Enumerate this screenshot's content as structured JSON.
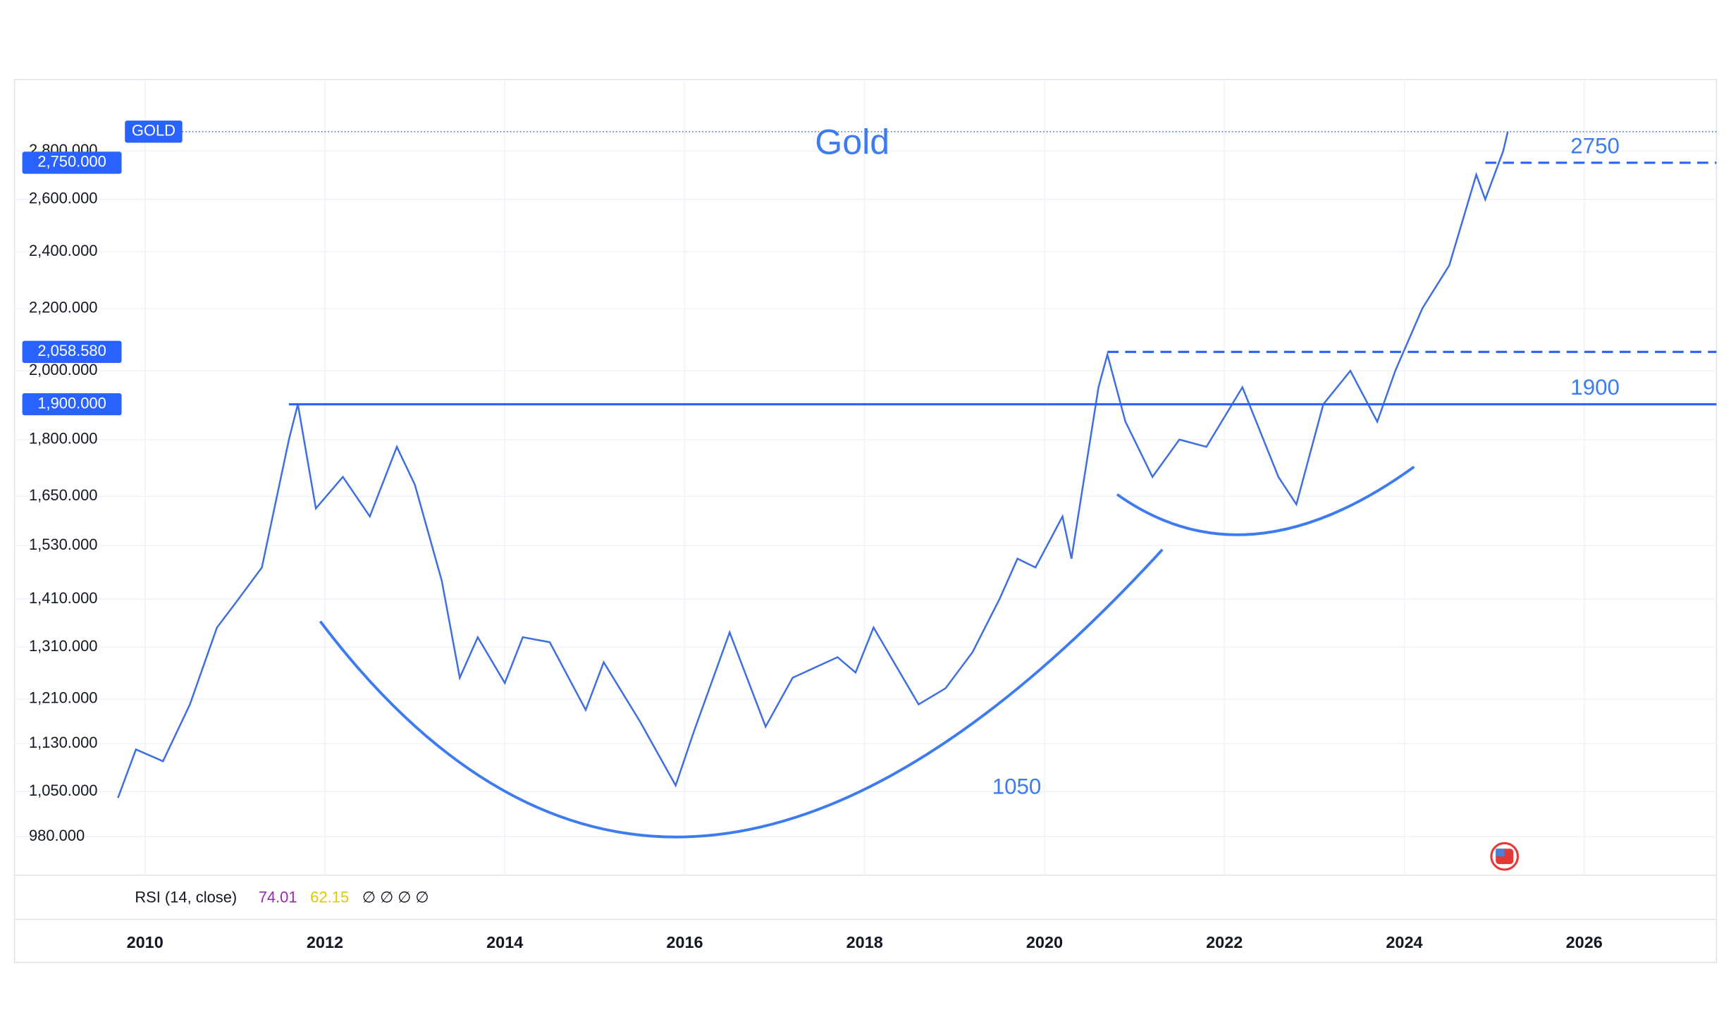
{
  "chart_data": {
    "type": "line",
    "title": "Gold",
    "x": [
      2009.7,
      2009.9,
      2010.2,
      2010.5,
      2010.8,
      2011.0,
      2011.3,
      2011.6,
      2011.7,
      2011.9,
      2012.2,
      2012.5,
      2012.8,
      2013.0,
      2013.3,
      2013.5,
      2013.7,
      2014.0,
      2014.2,
      2014.5,
      2014.9,
      2015.1,
      2015.5,
      2015.9,
      2016.1,
      2016.5,
      2016.9,
      2017.2,
      2017.7,
      2017.9,
      2018.1,
      2018.6,
      2018.9,
      2019.2,
      2019.5,
      2019.7,
      2019.9,
      2020.2,
      2020.3,
      2020.6,
      2020.7,
      2020.9,
      2021.2,
      2021.5,
      2021.8,
      2022.2,
      2022.6,
      2022.8,
      2023.1,
      2023.4,
      2023.7,
      2023.9,
      2024.2,
      2024.5,
      2024.8,
      2024.9,
      2025.1,
      2025.15
    ],
    "series": [
      {
        "name": "GOLD",
        "color": "#3d6fe0",
        "values": [
          1040,
          1120,
          1100,
          1200,
          1350,
          1400,
          1480,
          1800,
          1900,
          1620,
          1700,
          1600,
          1780,
          1680,
          1450,
          1250,
          1330,
          1240,
          1330,
          1320,
          1190,
          1280,
          1170,
          1060,
          1150,
          1340,
          1160,
          1250,
          1290,
          1260,
          1350,
          1200,
          1230,
          1300,
          1410,
          1500,
          1480,
          1600,
          1500,
          1950,
          2050,
          1850,
          1700,
          1800,
          1780,
          1950,
          1700,
          1630,
          1900,
          2000,
          1850,
          2000,
          2200,
          2350,
          2700,
          2600,
          2800,
          2884
        ]
      }
    ],
    "xlim": [
      2008.55,
      2027.47
    ],
    "xticks": [
      2010,
      2012,
      2014,
      2016,
      2018,
      2020,
      2022,
      2024,
      2026
    ],
    "ylim": [
      924,
      3124
    ],
    "log_y": true,
    "grid": true,
    "yticks": [
      {
        "value": 980,
        "label": "980.000"
      },
      {
        "value": 1050,
        "label": "1,050.000"
      },
      {
        "value": 1130,
        "label": "1,130.000"
      },
      {
        "value": 1210,
        "label": "1,210.000"
      },
      {
        "value": 1310,
        "label": "1,310.000"
      },
      {
        "value": 1410,
        "label": "1,410.000"
      },
      {
        "value": 1530,
        "label": "1,530.000"
      },
      {
        "value": 1650,
        "label": "1,650.000"
      },
      {
        "value": 1800,
        "label": "1,800.000"
      },
      {
        "value": 2000,
        "label": "2,000.000"
      },
      {
        "value": 2200,
        "label": "2,200.000"
      },
      {
        "value": 2400,
        "label": "2,400.000"
      },
      {
        "value": 2600,
        "label": "2,600.000"
      },
      {
        "value": 2800,
        "label": "2,800.000"
      }
    ],
    "levels": [
      {
        "value": 2750,
        "label": "2,750.000",
        "annotation": "2750",
        "from": 2024.9,
        "style": "dashed"
      },
      {
        "value": 2058.58,
        "label": "2,058.580",
        "from": 2020.7,
        "style": "dashed"
      },
      {
        "value": 1900,
        "label": "1,900.000",
        "annotation": "1900",
        "from": 2011.6,
        "style": "solid"
      }
    ],
    "annotations": [
      "1050"
    ],
    "indicator": {
      "label": "RSI (14, close)",
      "readings": [
        {
          "value": 74.01,
          "color": "#9c27b0"
        },
        {
          "value": 62.15,
          "color": "#e0c800"
        }
      ],
      "placeholders": "∅ ∅ ∅ ∅"
    }
  }
}
